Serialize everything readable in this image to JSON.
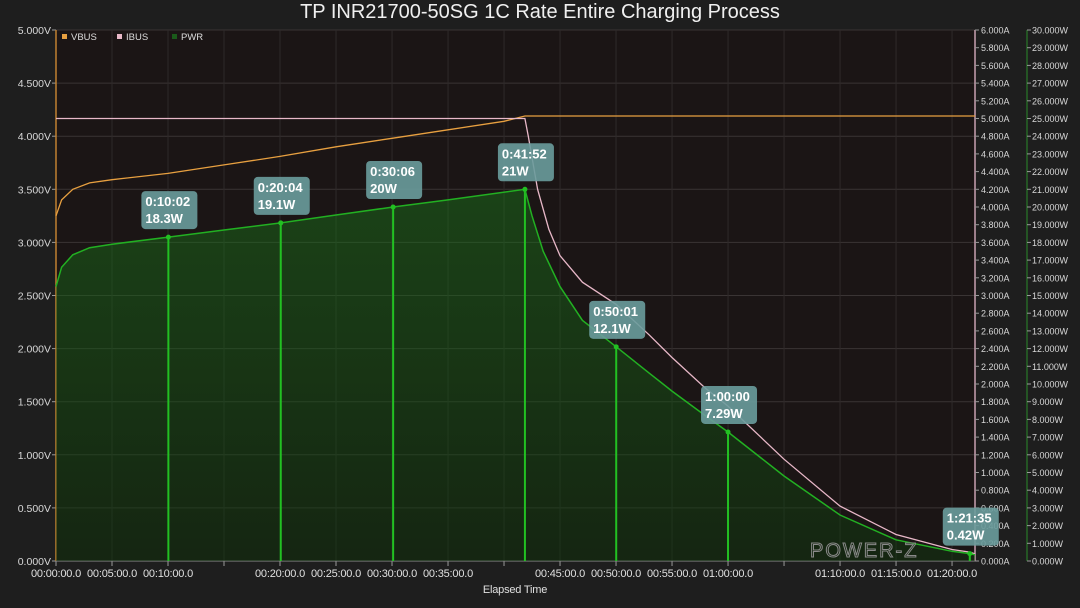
{
  "chart_data": {
    "type": "line",
    "title": "TP INR21700-50SG 1C Rate Entire Charging Process",
    "xlabel": "Elapsed Time",
    "x_unit": "h:mm:ss",
    "xlim": [
      "0:00:00",
      "1:22:03"
    ],
    "x_tick_labels": [
      {
        "t": "0:00:00",
        "label": "00:00:00.0"
      },
      {
        "t": "0:05:00",
        "label": "00:05:00.0"
      },
      {
        "t": "0:10:00",
        "label": "00:10:00.0"
      },
      {
        "t": "0:20:00",
        "label": "00:20:00.0"
      },
      {
        "t": "0:25:00",
        "label": "00:25:00.0"
      },
      {
        "t": "0:30:00",
        "label": "00:30:00.0"
      },
      {
        "t": "0:35:00",
        "label": "00:35:00.0"
      },
      {
        "t": "0:45:00",
        "label": "00:45:00.0"
      },
      {
        "t": "0:50:00",
        "label": "00:50:00.0"
      },
      {
        "t": "0:55:00",
        "label": "00:55:00.0"
      },
      {
        "t": "1:00:00",
        "label": "01:00:00.0"
      },
      {
        "t": "1:10:00",
        "label": "01:10:00.0"
      },
      {
        "t": "1:15:00",
        "label": "01:15:00.0"
      },
      {
        "t": "1:20:00",
        "label": "01:20:00.0"
      }
    ],
    "axes": {
      "left": {
        "unit": "V",
        "ylim": [
          0,
          5
        ],
        "ticks": [
          "0.000V",
          "0.500V",
          "1.000V",
          "1.500V",
          "2.000V",
          "2.500V",
          "3.000V",
          "3.500V",
          "4.000V",
          "4.500V",
          "5.000V"
        ]
      },
      "right1": {
        "unit": "A",
        "ylim": [
          0,
          6
        ],
        "ticks": [
          "0.000A",
          "0.200A",
          "0.400A",
          "0.600A",
          "0.800A",
          "1.000A",
          "1.200A",
          "1.400A",
          "1.600A",
          "1.800A",
          "2.000A",
          "2.200A",
          "2.400A",
          "2.600A",
          "2.800A",
          "3.000A",
          "3.200A",
          "3.400A",
          "3.600A",
          "3.800A",
          "4.000A",
          "4.200A",
          "4.400A",
          "4.600A",
          "4.800A",
          "5.000A",
          "5.200A",
          "5.400A",
          "5.600A",
          "5.800A",
          "6.000A"
        ]
      },
      "right2": {
        "unit": "W",
        "ylim": [
          0,
          30
        ],
        "ticks": [
          "0.000W",
          "1.000W",
          "2.000W",
          "3.000W",
          "4.000W",
          "5.000W",
          "6.000W",
          "7.000W",
          "8.000W",
          "9.000W",
          "10.000W",
          "11.000W",
          "12.000W",
          "13.000W",
          "14.000W",
          "15.000W",
          "16.000W",
          "17.000W",
          "18.000W",
          "19.000W",
          "20.000W",
          "21.000W",
          "22.000W",
          "23.000W",
          "24.000W",
          "25.000W",
          "26.000W",
          "27.000W",
          "28.000W",
          "29.000W",
          "30.000W"
        ]
      }
    },
    "grid": true,
    "legend_position": "top-left",
    "series": [
      {
        "name": "VBUS",
        "axis": "left",
        "color": "#e8a040",
        "points": [
          [
            "0:00:00",
            3.25
          ],
          [
            "0:00:30",
            3.4
          ],
          [
            "0:01:30",
            3.5
          ],
          [
            "0:03:00",
            3.56
          ],
          [
            "0:05:00",
            3.59
          ],
          [
            "0:10:00",
            3.65
          ],
          [
            "0:15:00",
            3.73
          ],
          [
            "0:20:00",
            3.81
          ],
          [
            "0:25:00",
            3.9
          ],
          [
            "0:30:00",
            3.98
          ],
          [
            "0:35:00",
            4.06
          ],
          [
            "0:40:00",
            4.14
          ],
          [
            "0:41:52",
            4.19
          ],
          [
            "0:50:00",
            4.19
          ],
          [
            "1:00:00",
            4.19
          ],
          [
            "1:22:03",
            4.19
          ]
        ]
      },
      {
        "name": "IBUS",
        "axis": "right1",
        "color": "#e8b8c8",
        "points": [
          [
            "0:00:00",
            5.0
          ],
          [
            "0:41:52",
            5.0
          ],
          [
            "0:42:10",
            4.8
          ],
          [
            "0:43:00",
            4.2
          ],
          [
            "0:44:00",
            3.75
          ],
          [
            "0:45:00",
            3.45
          ],
          [
            "0:47:00",
            3.15
          ],
          [
            "0:50:01",
            2.9
          ],
          [
            "0:53:00",
            2.55
          ],
          [
            "0:55:00",
            2.3
          ],
          [
            "0:58:00",
            1.95
          ],
          [
            "1:00:00",
            1.75
          ],
          [
            "1:05:00",
            1.15
          ],
          [
            "1:10:00",
            0.62
          ],
          [
            "1:15:00",
            0.3
          ],
          [
            "1:20:00",
            0.13
          ],
          [
            "1:21:35",
            0.1
          ],
          [
            "1:22:03",
            0.08
          ]
        ]
      },
      {
        "name": "PWR",
        "axis": "right2",
        "color": "#1a8c1a",
        "points": [
          [
            "0:00:00",
            15.5
          ],
          [
            "0:00:30",
            16.6
          ],
          [
            "0:01:30",
            17.3
          ],
          [
            "0:03:00",
            17.7
          ],
          [
            "0:05:00",
            17.9
          ],
          [
            "0:10:02",
            18.3
          ],
          [
            "0:15:00",
            18.7
          ],
          [
            "0:20:04",
            19.1
          ],
          [
            "0:25:00",
            19.55
          ],
          [
            "0:30:06",
            20.0
          ],
          [
            "0:35:00",
            20.4
          ],
          [
            "0:41:52",
            21.0
          ],
          [
            "0:42:30",
            19.5
          ],
          [
            "0:43:30",
            17.5
          ],
          [
            "0:45:00",
            15.5
          ],
          [
            "0:47:00",
            13.6
          ],
          [
            "0:50:01",
            12.1
          ],
          [
            "0:53:00",
            10.6
          ],
          [
            "0:55:00",
            9.6
          ],
          [
            "0:58:00",
            8.2
          ],
          [
            "1:00:00",
            7.29
          ],
          [
            "1:05:00",
            4.8
          ],
          [
            "1:10:00",
            2.6
          ],
          [
            "1:15:00",
            1.2
          ],
          [
            "1:20:00",
            0.55
          ],
          [
            "1:21:35",
            0.42
          ],
          [
            "1:22:03",
            0.35
          ]
        ]
      }
    ],
    "annotations": [
      {
        "time": "0:10:02",
        "value": "18.3W"
      },
      {
        "time": "0:20:04",
        "value": "19.1W"
      },
      {
        "time": "0:30:06",
        "value": "20W"
      },
      {
        "time": "0:41:52",
        "value": "21W"
      },
      {
        "time": "0:50:01",
        "value": "12.1W"
      },
      {
        "time": "1:00:00",
        "value": "7.29W"
      },
      {
        "time": "1:21:35",
        "value": "0.42W"
      }
    ],
    "watermark": "POWER-Z"
  }
}
